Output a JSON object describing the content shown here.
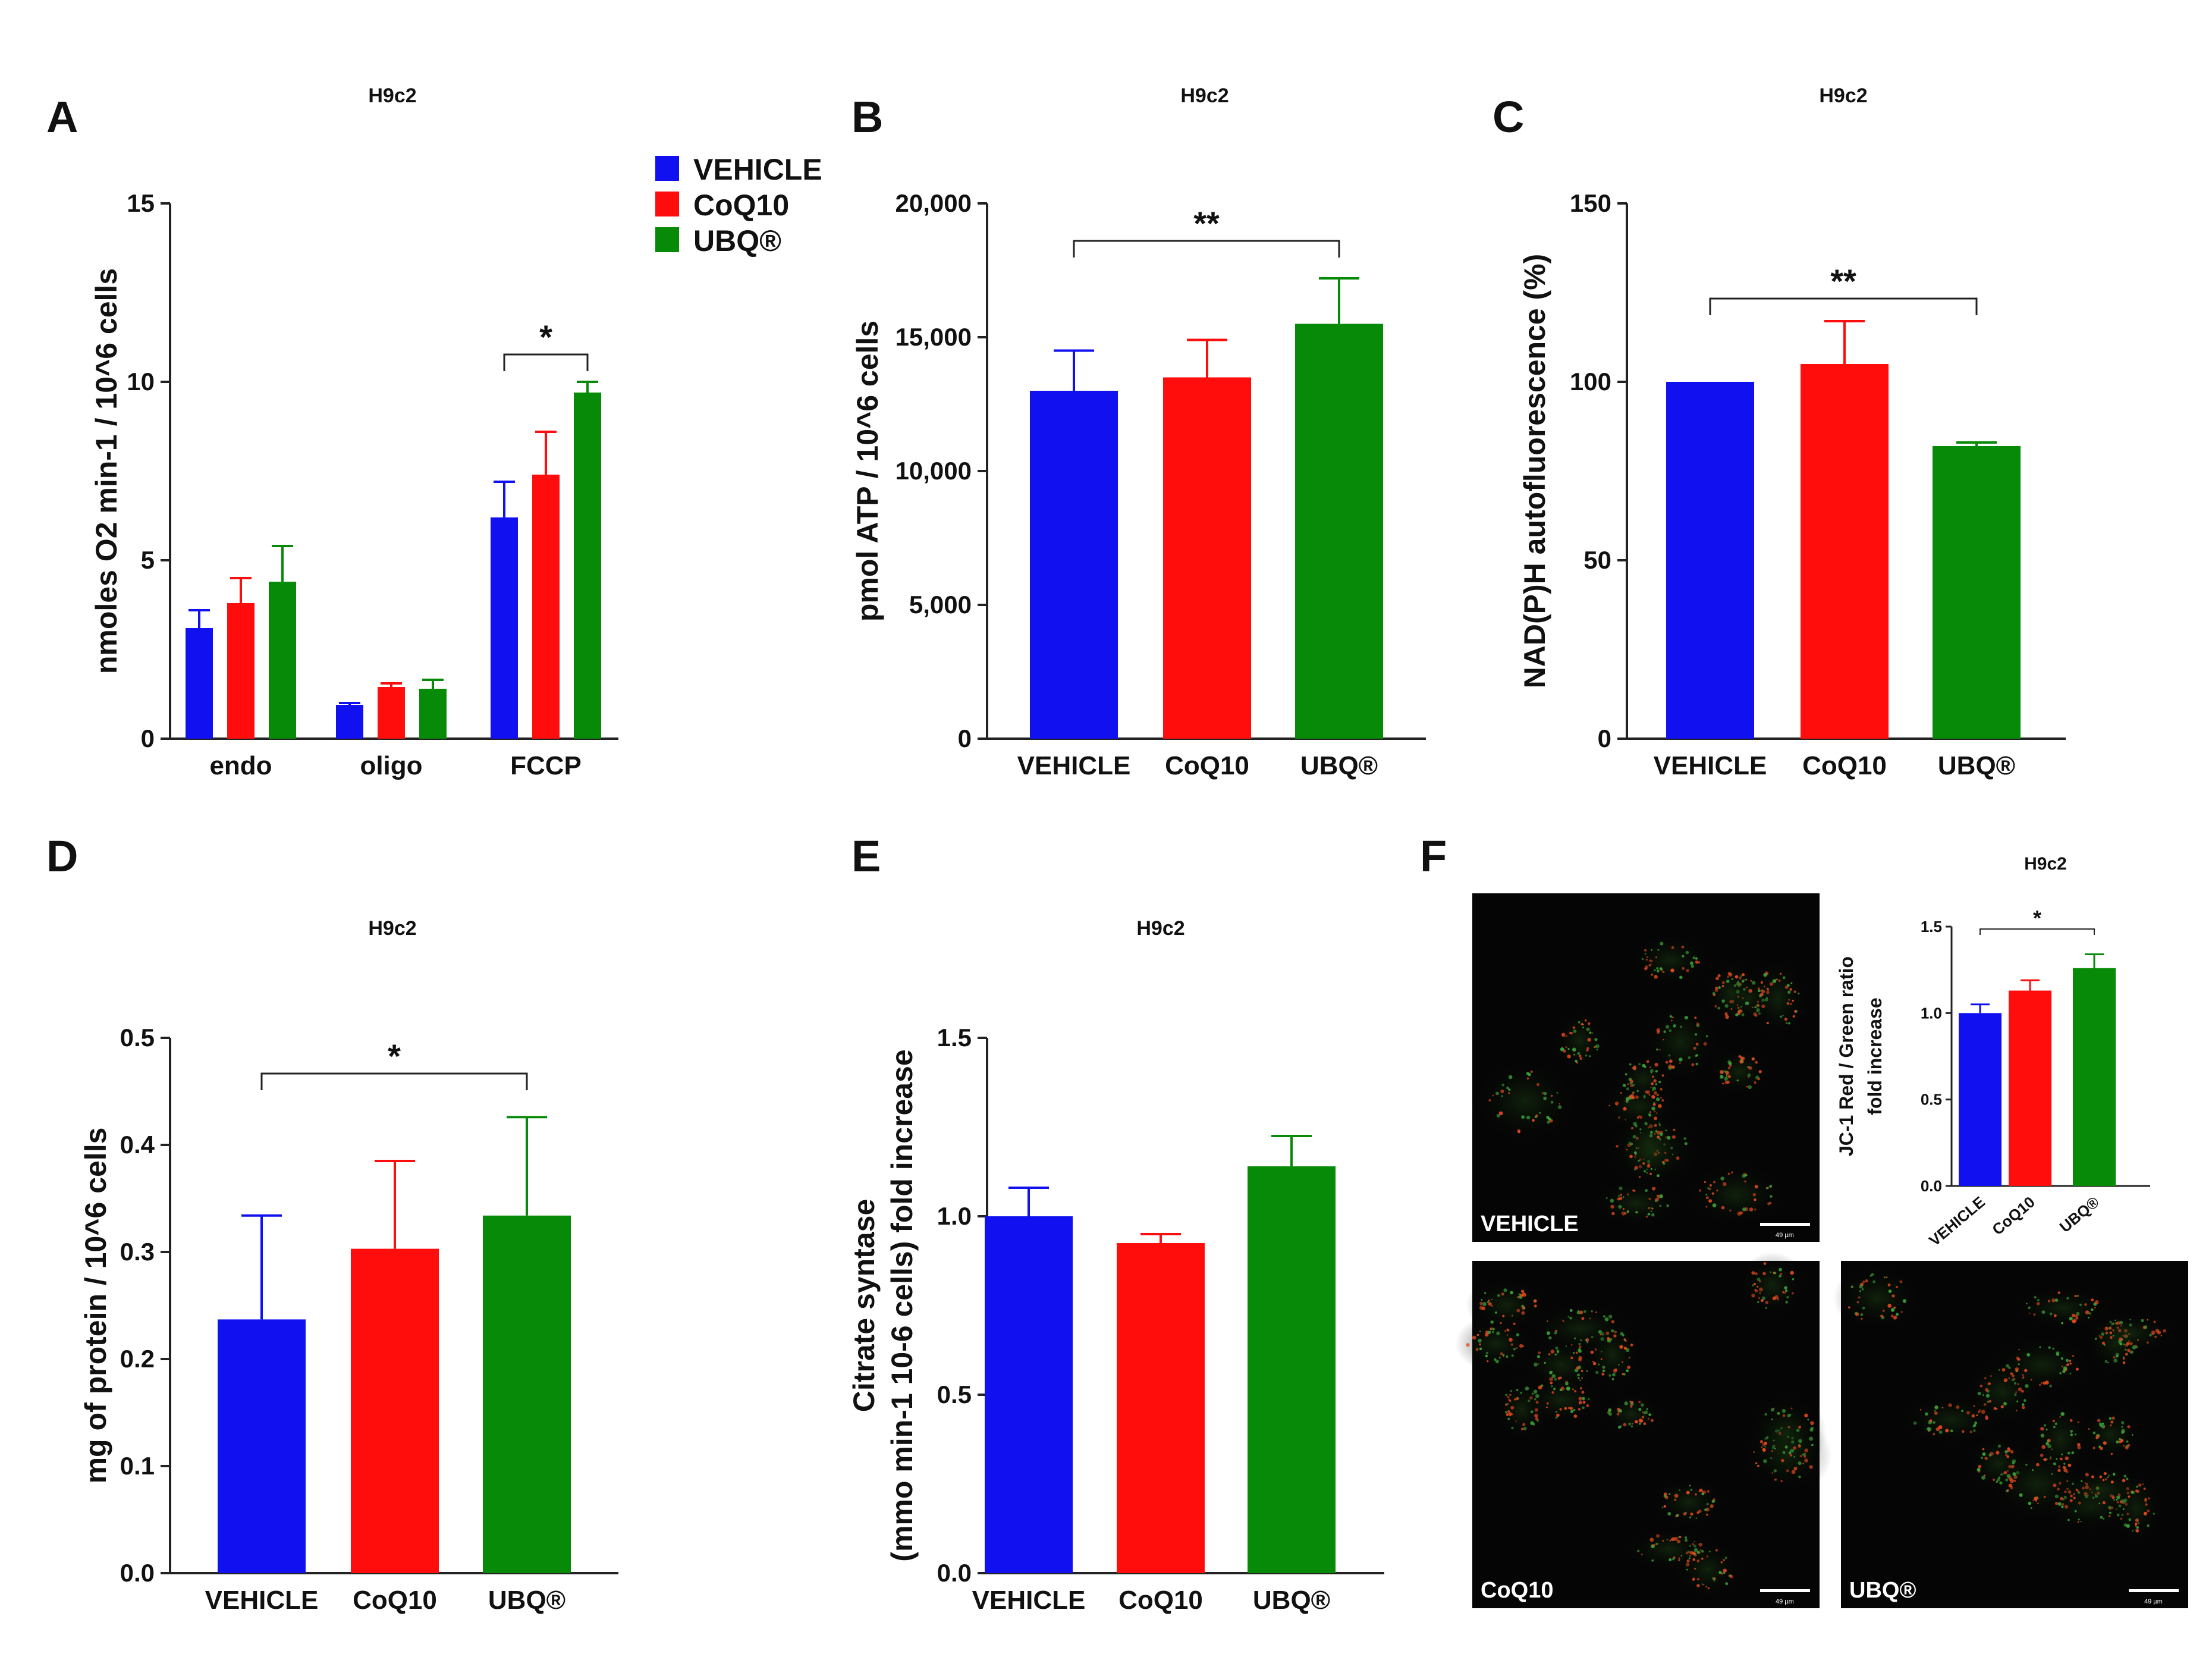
{
  "chart_data": [
    {
      "panel": "A",
      "type": "bar",
      "title": "H9c2",
      "ylabel": "nmoles O2 min-1 / 10^6 cells",
      "ylim": [
        0,
        15
      ],
      "yticks": [
        0,
        5,
        10,
        15
      ],
      "categories": [
        "endo",
        "oligo",
        "FCCP"
      ],
      "series": [
        {
          "name": "VEHICLE",
          "color": "#1010f0",
          "values": [
            3.1,
            0.95,
            6.2
          ],
          "errors": [
            0.5,
            0.05,
            1.0
          ]
        },
        {
          "name": "CoQ10",
          "color": "#ff0d0d",
          "values": [
            3.8,
            1.45,
            7.4
          ],
          "errors": [
            0.7,
            0.1,
            1.2
          ]
        },
        {
          "name": "UBQ®",
          "color": "#078a07",
          "values": [
            4.4,
            1.4,
            9.7
          ],
          "errors": [
            1.0,
            0.25,
            0.3
          ]
        }
      ],
      "significance": [
        {
          "label": "*",
          "group": "FCCP",
          "from": "VEHICLE",
          "to": "UBQ®"
        }
      ]
    },
    {
      "panel": "B",
      "type": "bar",
      "title": "H9c2",
      "ylabel": "pmol ATP / 10^6 cells",
      "ylim": [
        0,
        20000
      ],
      "yticks": [
        "0",
        "5,000",
        "10,000",
        "15,000",
        "20,000"
      ],
      "categories": [
        "VEHICLE",
        "CoQ10",
        "UBQ®"
      ],
      "colors": [
        "#1010f0",
        "#ff0d0d",
        "#078a07"
      ],
      "values": [
        13000,
        13500,
        15500
      ],
      "errors": [
        1500,
        1400,
        1700
      ],
      "significance": [
        {
          "label": "**",
          "from": "VEHICLE",
          "to": "UBQ®"
        }
      ]
    },
    {
      "panel": "C",
      "type": "bar",
      "title": "H9c2",
      "ylabel": "NAD(P)H autofluorescence (%)",
      "ylim": [
        0,
        150
      ],
      "yticks": [
        0,
        50,
        100,
        150
      ],
      "categories": [
        "VEHICLE",
        "CoQ10",
        "UBQ®"
      ],
      "colors": [
        "#1010f0",
        "#ff0d0d",
        "#078a07"
      ],
      "values": [
        100,
        105,
        82
      ],
      "errors": [
        0,
        12,
        1
      ],
      "significance": [
        {
          "label": "**",
          "from": "VEHICLE",
          "to": "UBQ®"
        }
      ]
    },
    {
      "panel": "D",
      "type": "bar",
      "title": "H9c2",
      "ylabel": "mg of protein / 10^6 cells",
      "ylim": [
        0,
        0.5
      ],
      "yticks": [
        "0.0",
        "0.1",
        "0.2",
        "0.3",
        "0.4",
        "0.5"
      ],
      "categories": [
        "VEHICLE",
        "CoQ10",
        "UBQ®"
      ],
      "colors": [
        "#1010f0",
        "#ff0d0d",
        "#078a07"
      ],
      "values": [
        0.237,
        0.303,
        0.334
      ],
      "errors": [
        0.097,
        0.082,
        0.092
      ],
      "significance": [
        {
          "label": "*",
          "from": "VEHICLE",
          "to": "UBQ®"
        }
      ]
    },
    {
      "panel": "E",
      "type": "bar",
      "title": "H9c2",
      "ylabel_line1": "Citrate syntase",
      "ylabel_line2": "(mmo min-1 10-6 cells) fold increase",
      "ylim": [
        0,
        1.5
      ],
      "yticks": [
        "0.0",
        "0.5",
        "1.0",
        "1.5"
      ],
      "categories": [
        "VEHICLE",
        "CoQ10",
        "UBQ®"
      ],
      "colors": [
        "#1010f0",
        "#ff0d0d",
        "#078a07"
      ],
      "values": [
        1.0,
        0.925,
        1.14
      ],
      "errors": [
        0.08,
        0.025,
        0.085
      ],
      "significance": []
    },
    {
      "panel": "F",
      "type": "bar",
      "title": "H9c2",
      "ylabel_line1": "JC-1 Red / Green ratio",
      "ylabel_line2": "fold increase",
      "ylim": [
        0,
        1.5
      ],
      "yticks": [
        "0.0",
        "0.5",
        "1.0",
        "1.5"
      ],
      "categories": [
        "VEHICLE",
        "CoQ10",
        "UBQ®"
      ],
      "colors": [
        "#1010f0",
        "#ff0d0d",
        "#078a07"
      ],
      "values": [
        1.0,
        1.13,
        1.26
      ],
      "errors": [
        0.05,
        0.06,
        0.08
      ],
      "significance": [
        {
          "label": "*",
          "from": "VEHICLE",
          "to": "UBQ®"
        }
      ]
    }
  ],
  "panels": {
    "A": {
      "letter": "A",
      "title": "H9c2"
    },
    "B": {
      "letter": "B",
      "title": "H9c2"
    },
    "C": {
      "letter": "C",
      "title": "H9c2"
    },
    "D": {
      "letter": "D",
      "title": "H9c2"
    },
    "E": {
      "letter": "E",
      "title": "H9c2"
    },
    "F": {
      "letter": "F",
      "title": "H9c2"
    }
  },
  "legend": {
    "items": [
      {
        "label": "VEHICLE",
        "color": "#1010f0"
      },
      {
        "label": "CoQ10",
        "color": "#ff0d0d"
      },
      {
        "label": "UBQ®",
        "color": "#078a07"
      }
    ]
  },
  "micrographs": {
    "vehicle": {
      "label": "VEHICLE",
      "scale": "49 µm"
    },
    "coq10": {
      "label": "CoQ10",
      "scale": "49 µm"
    },
    "ubq": {
      "label": "UBQ®",
      "scale": "49 µm"
    }
  }
}
